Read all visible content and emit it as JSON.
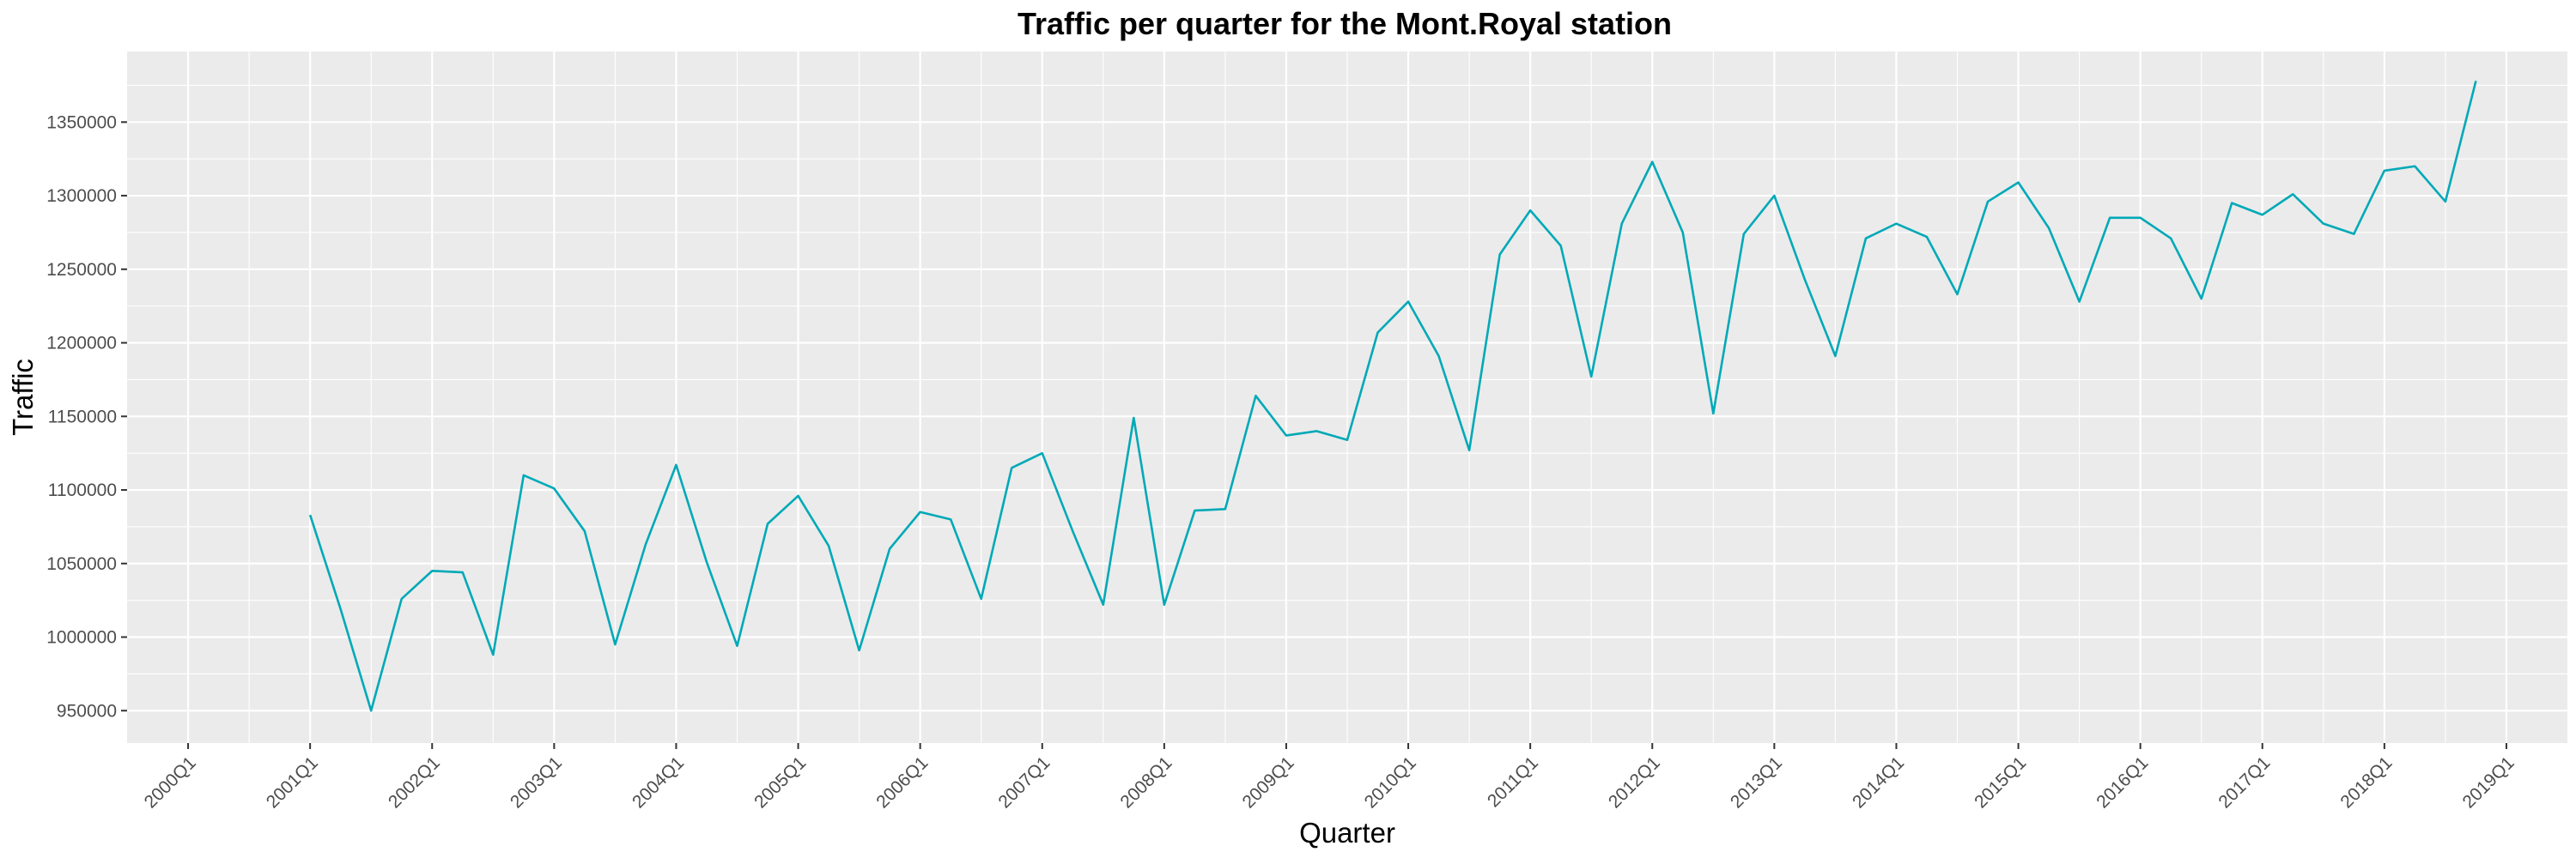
{
  "chart_data": {
    "type": "line",
    "title": "Traffic per quarter for the Mont.Royal station",
    "xlabel": "Quarter",
    "ylabel": "Traffic",
    "color": "#00A9B7",
    "panel_bg": "#EBEBEB",
    "x_ticks": [
      "2000Q1",
      "2001Q1",
      "2002Q1",
      "2003Q1",
      "2004Q1",
      "2005Q1",
      "2006Q1",
      "2007Q1",
      "2008Q1",
      "2009Q1",
      "2010Q1",
      "2011Q1",
      "2012Q1",
      "2013Q1",
      "2014Q1",
      "2015Q1",
      "2016Q1",
      "2017Q1",
      "2018Q1",
      "2019Q1"
    ],
    "y_ticks": [
      950000,
      1000000,
      1050000,
      1100000,
      1150000,
      1200000,
      1250000,
      1300000,
      1350000
    ],
    "y_tick_labels": [
      "950000",
      "1000000",
      "1050000",
      "1100000",
      "1150000",
      "1200000",
      "1250000",
      "1300000",
      "1350000"
    ],
    "xlim": [
      "1999Q3",
      "2019Q3"
    ],
    "ylim": [
      928000,
      1398000
    ],
    "grid": true,
    "series": [
      {
        "x": [
          "2001Q1",
          "2001Q2",
          "2001Q3",
          "2001Q4",
          "2002Q1",
          "2002Q2",
          "2002Q3",
          "2002Q4",
          "2003Q1",
          "2003Q2",
          "2003Q3",
          "2003Q4",
          "2004Q1",
          "2004Q2",
          "2004Q3",
          "2004Q4",
          "2005Q1",
          "2005Q2",
          "2005Q3",
          "2005Q4",
          "2006Q1",
          "2006Q2",
          "2006Q3",
          "2006Q4",
          "2007Q1",
          "2007Q2",
          "2007Q3",
          "2007Q4",
          "2008Q1",
          "2008Q2",
          "2008Q3",
          "2008Q4",
          "2009Q1",
          "2009Q2",
          "2009Q3",
          "2009Q4",
          "2010Q1",
          "2010Q2",
          "2010Q3",
          "2010Q4",
          "2011Q1",
          "2011Q2",
          "2011Q3",
          "2011Q4",
          "2012Q1",
          "2012Q2",
          "2012Q3",
          "2012Q4",
          "2013Q1",
          "2013Q2",
          "2013Q3",
          "2013Q4",
          "2014Q1",
          "2014Q2",
          "2014Q3",
          "2014Q4",
          "2015Q1",
          "2015Q2",
          "2015Q3",
          "2015Q4",
          "2016Q1",
          "2016Q2",
          "2016Q3",
          "2016Q4",
          "2017Q1",
          "2017Q2",
          "2017Q3",
          "2017Q4",
          "2018Q1",
          "2018Q2",
          "2018Q3",
          "2018Q4"
        ],
        "values": [
          1083000,
          1019000,
          950000,
          1026000,
          1045000,
          1044000,
          988000,
          1110000,
          1101000,
          1072000,
          995000,
          1063000,
          1117000,
          1051000,
          994000,
          1077000,
          1096000,
          1062000,
          991000,
          1060000,
          1085000,
          1080000,
          1026000,
          1115000,
          1125000,
          1072000,
          1022000,
          1149000,
          1022000,
          1086000,
          1087000,
          1164000,
          1137000,
          1140000,
          1134000,
          1207000,
          1228000,
          1191000,
          1127000,
          1260000,
          1290000,
          1266000,
          1177000,
          1281000,
          1323000,
          1275000,
          1152000,
          1274000,
          1300000,
          1243000,
          1191000,
          1271000,
          1281000,
          1272000,
          1233000,
          1296000,
          1309000,
          1278000,
          1228000,
          1285000,
          1285000,
          1271000,
          1230000,
          1295000,
          1287000,
          1301000,
          1281000,
          1274000,
          1317000,
          1320000,
          1296000,
          1378000
        ]
      }
    ]
  }
}
